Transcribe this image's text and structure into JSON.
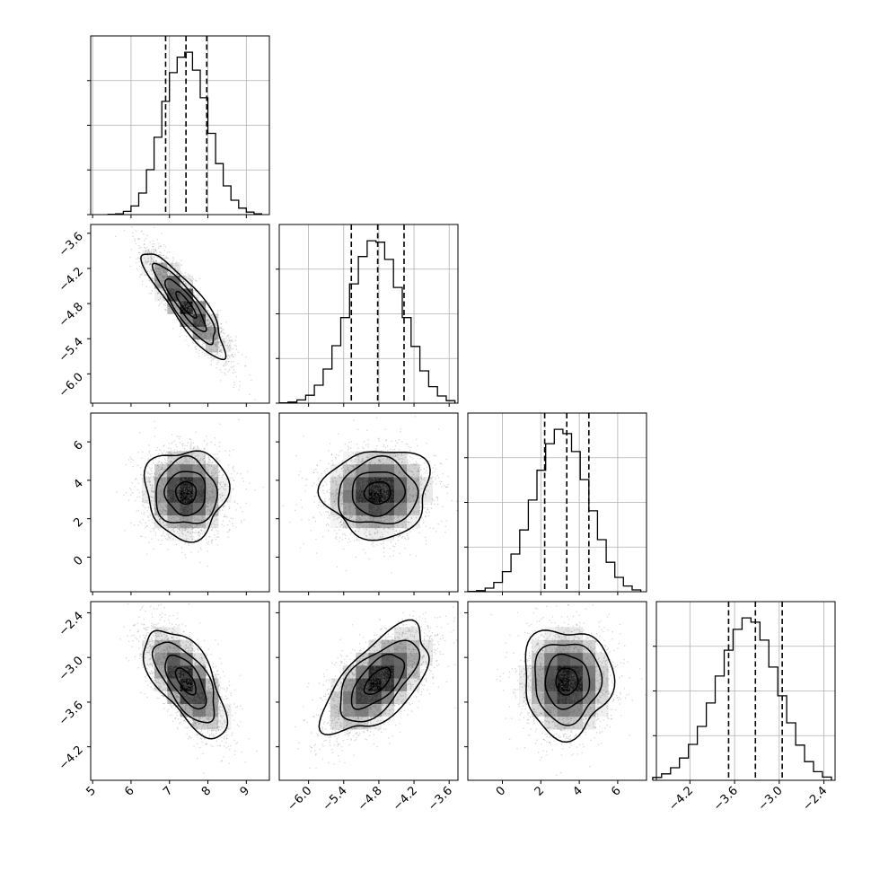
{
  "chart_data": {
    "type": "corner",
    "parameters": [
      {
        "name": "",
        "range": [
          4.95,
          9.6
        ],
        "ticks": [
          5,
          6,
          7,
          8,
          9
        ],
        "tick_labels": [
          "5",
          "6",
          "7",
          "8",
          "9"
        ],
        "quantiles": [
          6.9,
          7.43,
          7.97
        ],
        "mean": 7.43,
        "sd": 0.53
      },
      {
        "name": "",
        "range": [
          -6.5,
          -3.45
        ],
        "ticks": [
          -6.0,
          -5.4,
          -4.8,
          -4.2,
          -3.6
        ],
        "tick_labels": [
          "−6.0",
          "−5.4",
          "−4.8",
          "−4.2",
          "−3.6"
        ],
        "quantiles": [
          -5.27,
          -4.82,
          -4.37
        ],
        "mean": -4.82,
        "sd": 0.45
      },
      {
        "name": "",
        "range": [
          -1.8,
          7.5
        ],
        "ticks": [
          0,
          2,
          4,
          6
        ],
        "tick_labels": [
          "0",
          "2",
          "4",
          "6"
        ],
        "quantiles": [
          2.2,
          3.35,
          4.5
        ],
        "mean": 3.35,
        "sd": 1.15
      },
      {
        "name": "",
        "range": [
          -4.65,
          -2.25
        ],
        "ticks": [
          -4.2,
          -3.6,
          -3.0,
          -2.4
        ],
        "tick_labels": [
          "−4.2",
          "−3.6",
          "−3.0",
          "−2.4"
        ],
        "quantiles": [
          -3.68,
          -3.32,
          -2.96
        ],
        "mean": -3.32,
        "sd": 0.36
      }
    ],
    "diagonal_histograms": [
      {
        "param": 0,
        "bins": [
          5.4,
          5.6,
          5.8,
          6.0,
          6.2,
          6.4,
          6.6,
          6.8,
          7.0,
          7.2,
          7.4,
          7.6,
          7.8,
          8.0,
          8.2,
          8.4,
          8.6,
          8.8,
          9.0,
          9.2,
          9.4
        ],
        "counts": [
          1,
          2,
          9,
          24,
          60,
          125,
          215,
          315,
          395,
          438,
          452,
          402,
          325,
          226,
          142,
          80,
          40,
          18,
          7,
          2
        ]
      },
      {
        "param": 1,
        "bins": [
          -6.5,
          -6.35,
          -6.2,
          -6.05,
          -5.9,
          -5.75,
          -5.6,
          -5.45,
          -5.3,
          -5.15,
          -5.0,
          -4.85,
          -4.7,
          -4.55,
          -4.4,
          -4.25,
          -4.1,
          -3.95,
          -3.8,
          -3.65,
          -3.5
        ],
        "counts": [
          1,
          3,
          9,
          22,
          50,
          95,
          160,
          238,
          332,
          408,
          452,
          448,
          400,
          322,
          238,
          158,
          90,
          46,
          20,
          7
        ]
      },
      {
        "param": 2,
        "bins": [
          -1.8,
          -1.35,
          -0.9,
          -0.45,
          0.0,
          0.45,
          0.9,
          1.35,
          1.8,
          2.25,
          2.7,
          3.15,
          3.6,
          4.05,
          4.5,
          4.95,
          5.4,
          5.85,
          6.3,
          6.75,
          7.2
        ],
        "counts": [
          1,
          3,
          10,
          26,
          56,
          105,
          172,
          255,
          338,
          412,
          452,
          440,
          390,
          312,
          225,
          145,
          82,
          40,
          16,
          5
        ]
      },
      {
        "param": 3,
        "bins": [
          -4.7,
          -4.58,
          -4.46,
          -4.34,
          -4.22,
          -4.1,
          -3.98,
          -3.86,
          -3.74,
          -3.62,
          -3.5,
          -3.38,
          -3.26,
          -3.14,
          -3.02,
          -2.9,
          -2.78,
          -2.66,
          -2.54,
          -2.42,
          -2.3
        ],
        "counts": [
          8,
          18,
          35,
          62,
          100,
          150,
          215,
          290,
          362,
          420,
          452,
          440,
          390,
          315,
          235,
          160,
          98,
          52,
          24,
          9
        ]
      }
    ],
    "correlations": [
      {
        "x": 0,
        "y": 1,
        "rho": -0.88
      },
      {
        "x": 0,
        "y": 2,
        "rho": 0.0
      },
      {
        "x": 1,
        "y": 2,
        "rho": 0.05
      },
      {
        "x": 0,
        "y": 3,
        "rho": -0.65
      },
      {
        "x": 1,
        "y": 3,
        "rho": 0.62
      },
      {
        "x": 2,
        "y": 3,
        "rho": 0.0
      }
    ],
    "contour_levels_sigma": [
      0.5,
      1.0,
      1.5,
      2.0
    ],
    "grid": true,
    "colors": {
      "samples": "#6f6f6f",
      "density": "#000000",
      "lines": "#000000"
    }
  }
}
